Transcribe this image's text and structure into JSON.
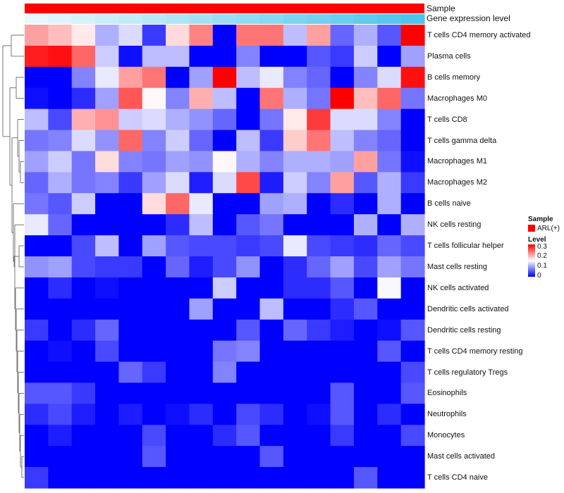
{
  "chart_data": {
    "type": "heatmap",
    "title": "",
    "value_range": [
      0,
      0.35
    ],
    "color_scale": {
      "low": "#0000ff",
      "mid": "#ffffff",
      "high": "#ff0000",
      "mid_value": 0.175
    },
    "annotation_tracks": [
      {
        "name": "Sample",
        "values_text": "ARL(+) for all columns",
        "color": "#ff0000"
      },
      {
        "name": "Gene expression level",
        "values_text": "gradient light to dark",
        "color_start": "#e8f8fc",
        "color_end": "#4dc4ec"
      }
    ],
    "rows": [
      "T cells CD4 memory activated",
      "Plasma cells",
      "B cells memory",
      "Macrophages M0",
      "T cells CD8",
      "T cells gamma delta",
      "Macrophages M1",
      "Macrophages M2",
      "B cells naive",
      "NK cells resting",
      "T cells follicular helper",
      "Mast cells resting",
      "NK cells activated",
      "Dendritic cells activated",
      "Dendritic cells resting",
      "T cells CD4 memory resting",
      "T cells regulatory  Tregs",
      "Eosinophils",
      "Neutrophils",
      "Monocytes",
      "Mast cells activated",
      "T cells CD4 naive"
    ],
    "n_columns": 17,
    "values": [
      [
        0.24,
        0.22,
        0.19,
        0.12,
        0.15,
        0.04,
        0.2,
        0.26,
        0.0,
        0.27,
        0.27,
        0.13,
        0.24,
        0.07,
        0.12,
        0.06,
        0.35
      ],
      [
        0.33,
        0.34,
        0.28,
        0.14,
        0.01,
        0.13,
        0.13,
        0.0,
        0.0,
        0.09,
        0.0,
        0.0,
        0.06,
        0.04,
        0.14,
        0.0,
        0.11
      ],
      [
        0.0,
        0.0,
        0.09,
        0.16,
        0.24,
        0.27,
        0.0,
        0.11,
        0.35,
        0.13,
        0.16,
        0.09,
        0.07,
        0.0,
        0.09,
        0.15,
        0.34
      ],
      [
        0.01,
        0.0,
        0.03,
        0.11,
        0.29,
        0.18,
        0.09,
        0.23,
        0.13,
        0.0,
        0.27,
        0.12,
        0.08,
        0.35,
        0.22,
        0.28,
        0.08
      ],
      [
        0.13,
        0.05,
        0.23,
        0.25,
        0.14,
        0.15,
        0.12,
        0.1,
        0.07,
        0.0,
        0.08,
        0.19,
        0.31,
        0.15,
        0.15,
        0.09,
        0.0
      ],
      [
        0.08,
        0.09,
        0.15,
        0.1,
        0.28,
        0.09,
        0.14,
        0.07,
        0.0,
        0.13,
        0.04,
        0.21,
        0.27,
        0.13,
        0.09,
        0.07,
        0.0
      ],
      [
        0.11,
        0.14,
        0.08,
        0.2,
        0.09,
        0.08,
        0.11,
        0.1,
        0.18,
        0.12,
        0.09,
        0.12,
        0.12,
        0.11,
        0.24,
        0.08,
        0.01
      ],
      [
        0.07,
        0.12,
        0.08,
        0.09,
        0.04,
        0.11,
        0.15,
        0.02,
        0.15,
        0.3,
        0.02,
        0.14,
        0.09,
        0.24,
        0.06,
        0.12,
        0.04
      ],
      [
        0.08,
        0.06,
        0.14,
        0.0,
        0.0,
        0.2,
        0.28,
        0.16,
        0.0,
        0.0,
        0.11,
        0.12,
        0.0,
        0.03,
        0.0,
        0.12,
        0.0
      ],
      [
        0.16,
        0.07,
        0.0,
        0.0,
        0.0,
        0.0,
        0.03,
        0.13,
        0.0,
        0.06,
        0.08,
        0.0,
        0.0,
        0.0,
        0.12,
        0.0,
        0.12
      ],
      [
        0.0,
        0.0,
        0.05,
        0.13,
        0.0,
        0.11,
        0.06,
        0.05,
        0.05,
        0.04,
        0.05,
        0.16,
        0.05,
        0.04,
        0.03,
        0.07,
        0.05
      ],
      [
        0.1,
        0.11,
        0.05,
        0.04,
        0.04,
        0.0,
        0.07,
        0.02,
        0.05,
        0.1,
        0.0,
        0.03,
        0.07,
        0.11,
        0.05,
        0.11,
        0.08
      ],
      [
        0.0,
        0.03,
        0.0,
        0.01,
        0.0,
        0.0,
        0.0,
        0.0,
        0.14,
        0.0,
        0.0,
        0.03,
        0.03,
        0.06,
        0.0,
        0.17,
        0.0
      ],
      [
        0.0,
        0.0,
        0.0,
        0.0,
        0.0,
        0.0,
        0.0,
        0.11,
        0.0,
        0.0,
        0.13,
        0.0,
        0.0,
        0.03,
        0.06,
        0.0,
        0.0
      ],
      [
        0.04,
        0.0,
        0.03,
        0.07,
        0.0,
        0.0,
        0.0,
        0.0,
        0.0,
        0.06,
        0.0,
        0.07,
        0.04,
        0.02,
        0.0,
        0.01,
        0.06
      ],
      [
        0.0,
        0.01,
        0.0,
        0.05,
        0.0,
        0.0,
        0.0,
        0.0,
        0.08,
        0.09,
        0.0,
        0.0,
        0.0,
        0.0,
        0.0,
        0.06,
        0.0
      ],
      [
        0.0,
        0.0,
        0.0,
        0.0,
        0.07,
        0.04,
        0.0,
        0.0,
        0.09,
        0.0,
        0.0,
        0.0,
        0.0,
        0.0,
        0.0,
        0.0,
        0.05
      ],
      [
        0.06,
        0.06,
        0.04,
        0.0,
        0.0,
        0.0,
        0.0,
        0.0,
        0.0,
        0.0,
        0.0,
        0.0,
        0.0,
        0.06,
        0.0,
        0.0,
        0.06
      ],
      [
        0.03,
        0.05,
        0.02,
        0.0,
        0.02,
        0.0,
        0.01,
        0.03,
        0.0,
        0.05,
        0.03,
        0.0,
        0.01,
        0.06,
        0.0,
        0.03,
        0.0
      ],
      [
        0.0,
        0.02,
        0.0,
        0.0,
        0.0,
        0.05,
        0.0,
        0.0,
        0.03,
        0.06,
        0.0,
        0.0,
        0.0,
        0.04,
        0.0,
        0.0,
        0.05
      ],
      [
        0.0,
        0.0,
        0.0,
        0.0,
        0.0,
        0.06,
        0.0,
        0.0,
        0.0,
        0.0,
        0.06,
        0.0,
        0.0,
        0.0,
        0.0,
        0.0,
        0.0
      ],
      [
        0.04,
        0.0,
        0.0,
        0.0,
        0.0,
        0.0,
        0.0,
        0.0,
        0.0,
        0.0,
        0.0,
        0.0,
        0.0,
        0.0,
        0.06,
        0.0,
        0.0
      ]
    ],
    "legend": {
      "placement": "right",
      "sample_title": "Sample",
      "sample_entry": "ARL(+)",
      "level_title": "Level",
      "level_ticks": [
        "0.3",
        "0.2",
        "0.1",
        "0"
      ]
    }
  }
}
